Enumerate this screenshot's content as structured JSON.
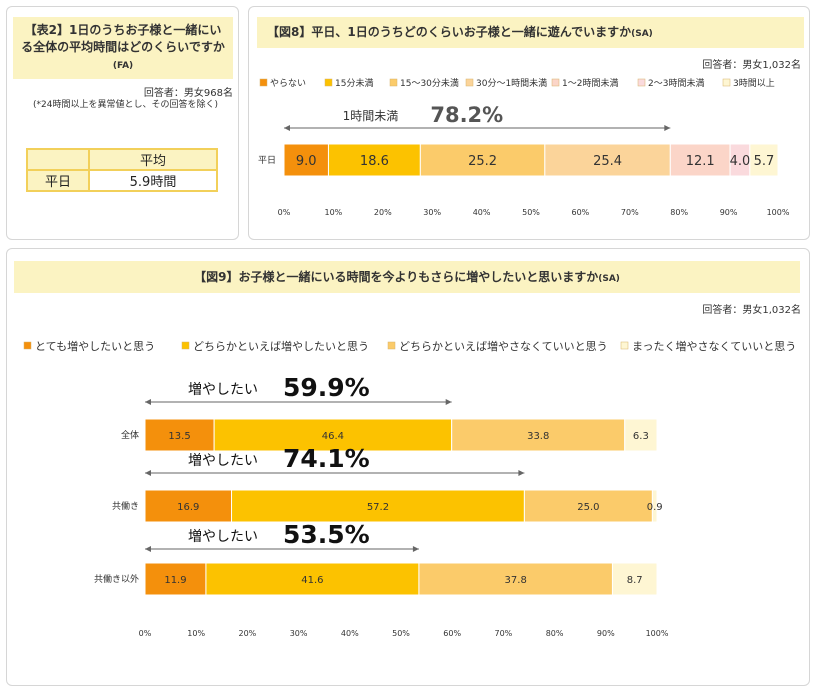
{
  "table2": {
    "title": "【表2】1日のうちお子様と一緒にいる全体の平均時間はどのくらいですか",
    "title_suffix": "(FA)",
    "respondents": "回答者：男女968名",
    "footnote": "(*24時間以上を異常値とし、その回答を除く)",
    "col_header": "平均",
    "row_label": "平日",
    "value": "5.9時間"
  },
  "fig8": {
    "title": "【図8】平日、1日のうちどのくらいお子様と一緒に遊んでいますか",
    "title_suffix": "(SA)",
    "respondents": "回答者：男女1,032名",
    "callout_label": "1時間未満",
    "callout_value": "78.2%"
  },
  "fig9": {
    "title": "【図9】お子様と一緒にいる時間を今よりもさらに増やしたいと思いますか",
    "title_suffix": "(SA)",
    "respondents": "回答者：男女1,032名",
    "callouts": [
      {
        "label": "増やしたい",
        "value": "59.9%"
      },
      {
        "label": "増やしたい",
        "value": "74.1%"
      },
      {
        "label": "増やしたい",
        "value": "53.5%"
      }
    ]
  },
  "colors": [
    "#f4900c",
    "#fcc200",
    "#fbcb6a",
    "#fedea0",
    "#fadadd",
    "#fef6d3"
  ],
  "chart_data": [
    {
      "type": "bar",
      "orientation": "horizontal-stacked-percent",
      "categories": [
        "平日"
      ],
      "xlim": [
        0,
        100
      ],
      "x_ticks": [
        "0%",
        "10%",
        "20%",
        "30%",
        "40%",
        "50%",
        "60%",
        "70%",
        "80%",
        "90%",
        "100%"
      ],
      "legend_position": "top",
      "series": [
        {
          "name": "やらない",
          "values": [
            9.0
          ],
          "color": "#f4900c"
        },
        {
          "name": "15分未満",
          "values": [
            18.6
          ],
          "color": "#fcc200"
        },
        {
          "name": "15～30分未満",
          "values": [
            25.2
          ],
          "color": "#fbcb6a"
        },
        {
          "name": "30分～1時間未満",
          "values": [
            25.4
          ],
          "color": "#fbd49a"
        },
        {
          "name": "1～2時間未満",
          "values": [
            12.1
          ],
          "color": "#fbd5c8"
        },
        {
          "name": "2～3時間未満",
          "values": [
            4.0
          ],
          "color": "#fadadd"
        },
        {
          "name": "3時間以上",
          "values": [
            5.7
          ],
          "color": "#fef6d3"
        }
      ],
      "labels": [
        [
          "9.0",
          "18.6",
          "25.2",
          "25.4",
          "12.1",
          "4.0",
          "5.7"
        ]
      ]
    },
    {
      "type": "bar",
      "orientation": "horizontal-stacked-percent",
      "categories": [
        "全体",
        "共働き",
        "共働き以外"
      ],
      "xlim": [
        0,
        100
      ],
      "x_ticks": [
        "0%",
        "10%",
        "20%",
        "30%",
        "40%",
        "50%",
        "60%",
        "70%",
        "80%",
        "90%",
        "100%"
      ],
      "legend_position": "top",
      "series": [
        {
          "name": "とても増やしたいと思う",
          "values": [
            13.5,
            16.9,
            11.9
          ],
          "color": "#f4900c"
        },
        {
          "name": "どちらかといえば増やしたいと思う",
          "values": [
            46.4,
            57.2,
            41.6
          ],
          "color": "#fcc200"
        },
        {
          "name": "どちらかといえば増やさなくていいと思う",
          "values": [
            33.8,
            25.0,
            37.8
          ],
          "color": "#fbcb6a"
        },
        {
          "name": "まったく増やさなくていいと思う",
          "values": [
            6.3,
            0.9,
            8.7
          ],
          "color": "#fef6d3"
        }
      ],
      "labels": [
        [
          "13.5",
          "46.4",
          "33.8",
          "6.3"
        ],
        [
          "16.9",
          "57.2",
          "25.0",
          "0.9"
        ],
        [
          "11.9",
          "41.6",
          "37.8",
          "8.7"
        ]
      ]
    }
  ]
}
